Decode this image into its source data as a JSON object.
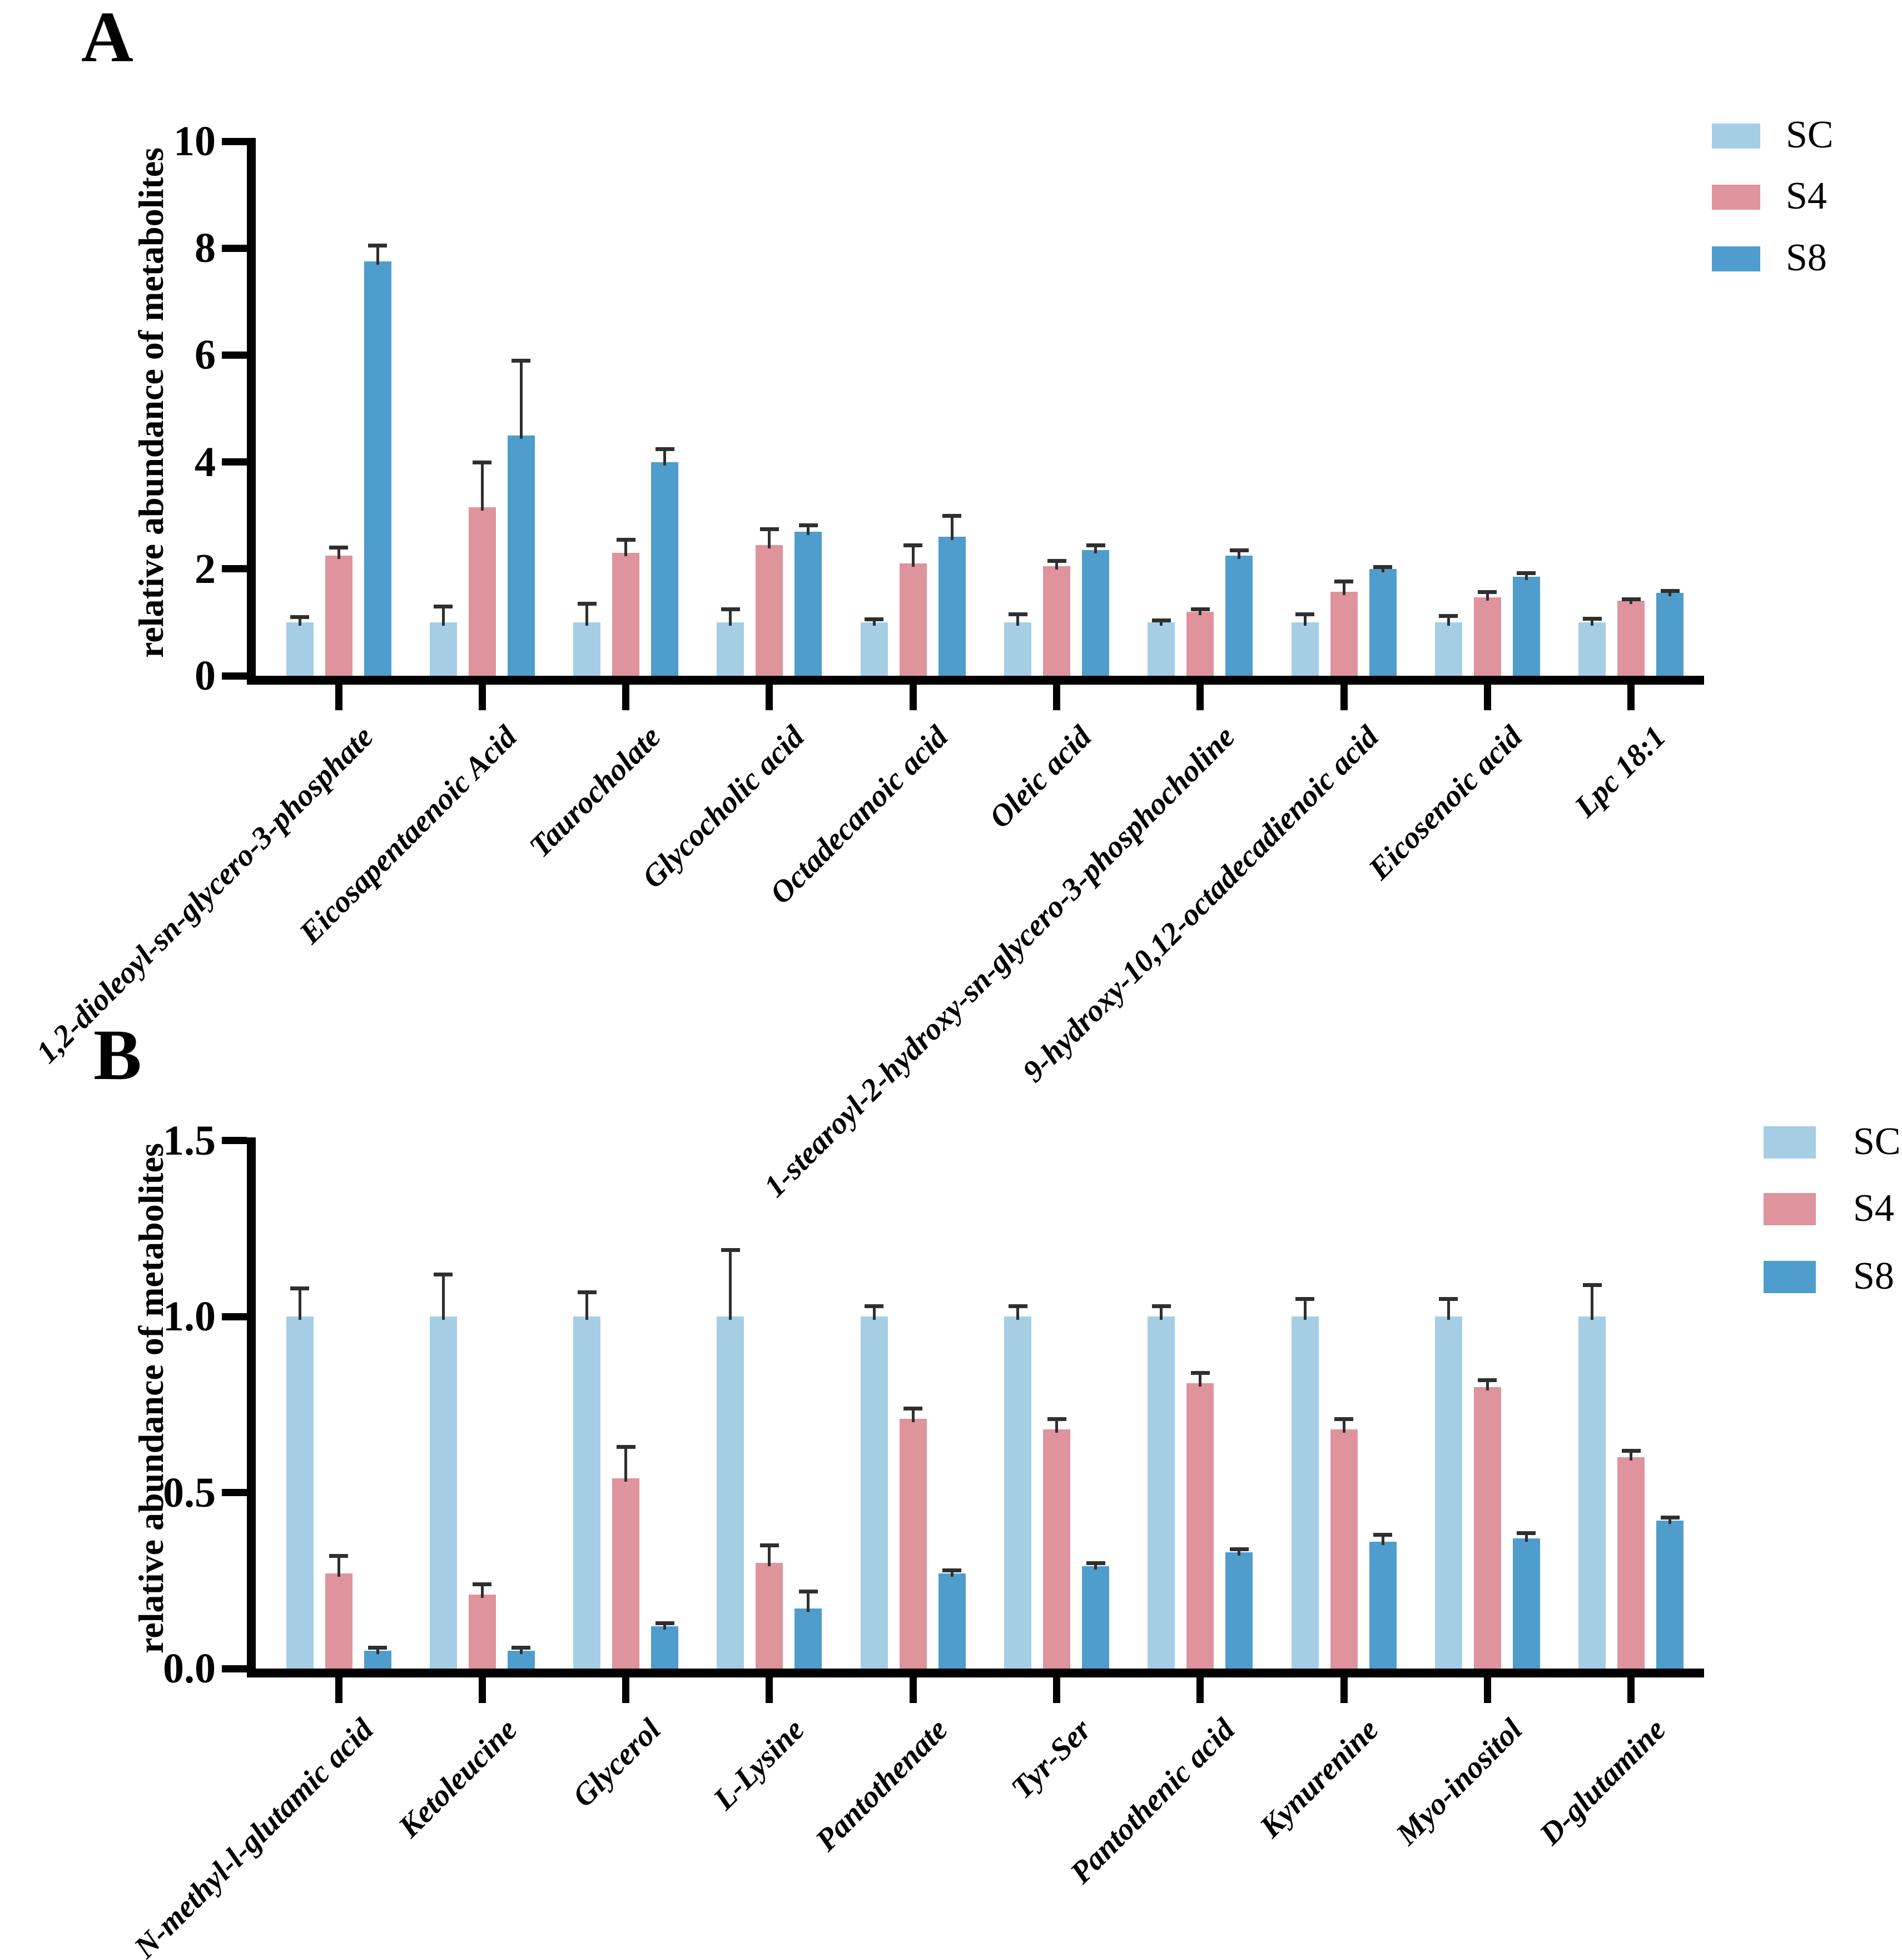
{
  "figure": {
    "background": "#ffffff",
    "panels": [
      {
        "label": "A",
        "ylabel": "relative abundance of metabolites",
        "ytick_labels": [
          "0",
          "2",
          "4",
          "6",
          "8",
          "10"
        ],
        "legend": [
          {
            "label": "SC",
            "color": "#A5CEE4"
          },
          {
            "label": "S4",
            "color": "#DF939C"
          },
          {
            "label": "S8",
            "color": "#4E9DCC"
          }
        ]
      },
      {
        "label": "B",
        "ylabel": "relative abundance of metabolites",
        "ytick_labels": [
          "0.0",
          "0.5",
          "1.0",
          "1.5"
        ],
        "legend": [
          {
            "label": "SC",
            "color": "#A5CEE4"
          },
          {
            "label": "S4",
            "color": "#DF939C"
          },
          {
            "label": "S8",
            "color": "#4E9DCC"
          }
        ]
      }
    ]
  },
  "chart_data": [
    {
      "type": "bar",
      "title": "",
      "xlabel": "",
      "ylabel": "relative abundance of metabolites",
      "ylim": [
        0,
        10
      ],
      "grid": false,
      "legend_position": "right",
      "error_bars": true,
      "categories": [
        "1,2-dioleoyl-sn-glycero-3-phosphate",
        "Eicosapentaenoic Acid",
        "Taurocholate",
        "Glycocholic acid",
        "Octadecanoic acid",
        "Oleic acid",
        "1-stearoyl-2-hydroxy-sn-glycero-3-phosphocholine",
        "9-hydroxy-10,12-octadecadienoic acid",
        "Eicosenoic acid",
        "Lpc 18:1"
      ],
      "series": [
        {
          "name": "SC",
          "color": "#A5CEE4",
          "values": [
            1.0,
            1.0,
            1.0,
            1.0,
            1.0,
            1.0,
            1.0,
            1.0,
            1.0,
            1.0
          ],
          "errors": [
            0.1,
            0.3,
            0.35,
            0.25,
            0.06,
            0.15,
            0.04,
            0.15,
            0.12,
            0.07
          ]
        },
        {
          "name": "S4",
          "color": "#DF939C",
          "values": [
            2.25,
            3.15,
            2.3,
            2.45,
            2.1,
            2.05,
            1.2,
            1.57,
            1.47,
            1.4
          ],
          "errors": [
            0.15,
            0.85,
            0.25,
            0.3,
            0.35,
            0.1,
            0.05,
            0.2,
            0.1,
            0.04
          ]
        },
        {
          "name": "S8",
          "color": "#4E9DCC",
          "values": [
            7.75,
            4.5,
            4.0,
            2.7,
            2.6,
            2.35,
            2.25,
            2.0,
            1.85,
            1.55
          ],
          "errors": [
            0.3,
            1.4,
            0.25,
            0.12,
            0.4,
            0.1,
            0.1,
            0.04,
            0.08,
            0.04
          ]
        }
      ]
    },
    {
      "type": "bar",
      "title": "",
      "xlabel": "",
      "ylabel": "relative abundance of metabolites",
      "ylim": [
        0,
        1.5
      ],
      "grid": false,
      "legend_position": "right",
      "error_bars": true,
      "categories": [
        "N-methyl-l-glutamic acid",
        "Ketoleucine",
        "Glycerol",
        "L-Lysine",
        "Pantothenate",
        "Tyr-Ser",
        "Pantothenic acid",
        "Kynurenine",
        "Myo-inositol",
        "D-glutamine"
      ],
      "series": [
        {
          "name": "SC",
          "color": "#A5CEE4",
          "values": [
            1.0,
            1.0,
            1.0,
            1.0,
            1.0,
            1.0,
            1.0,
            1.0,
            1.0,
            1.0
          ],
          "errors": [
            0.08,
            0.12,
            0.07,
            0.19,
            0.03,
            0.03,
            0.03,
            0.05,
            0.05,
            0.09
          ]
        },
        {
          "name": "S4",
          "color": "#DF939C",
          "values": [
            0.27,
            0.21,
            0.54,
            0.3,
            0.71,
            0.68,
            0.81,
            0.68,
            0.8,
            0.6
          ],
          "errors": [
            0.05,
            0.03,
            0.09,
            0.05,
            0.03,
            0.03,
            0.03,
            0.03,
            0.02,
            0.02
          ]
        },
        {
          "name": "S8",
          "color": "#4E9DCC",
          "values": [
            0.05,
            0.05,
            0.12,
            0.17,
            0.27,
            0.29,
            0.33,
            0.36,
            0.37,
            0.42
          ],
          "errors": [
            0.01,
            0.01,
            0.01,
            0.05,
            0.01,
            0.01,
            0.01,
            0.02,
            0.015,
            0.01
          ]
        }
      ]
    }
  ]
}
